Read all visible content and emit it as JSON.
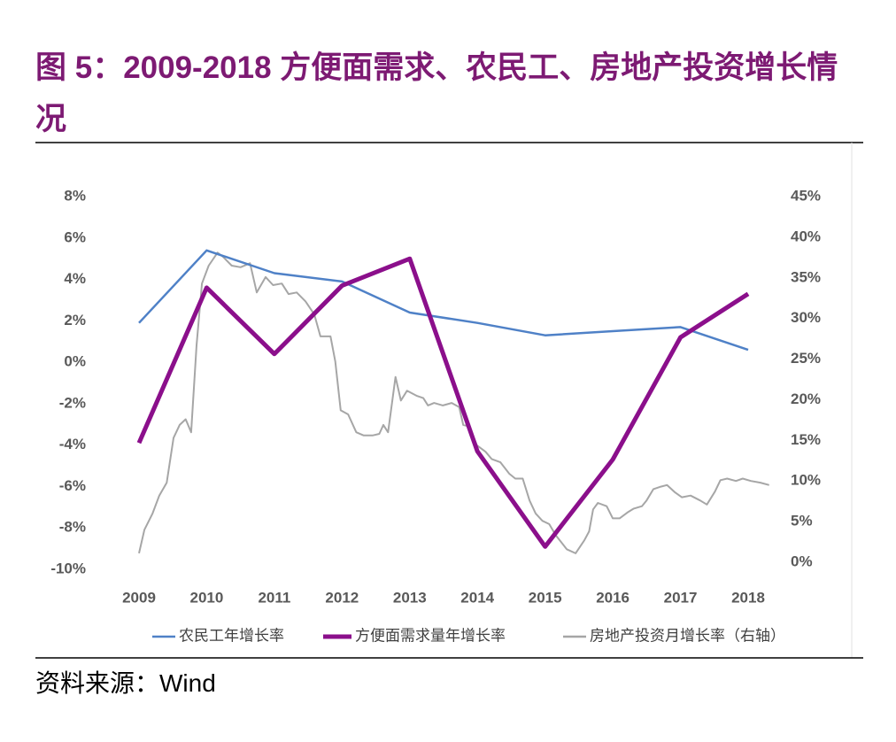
{
  "chart_data": {
    "type": "line",
    "title": "图 5：2009-2018 方便面需求、农民工、房地产投资增长情况",
    "x": [
      2009,
      2010,
      2011,
      2012,
      2013,
      2014,
      2015,
      2016,
      2017,
      2018
    ],
    "xlim": [
      2009,
      2018
    ],
    "xticks": [
      2009,
      2010,
      2011,
      2012,
      2013,
      2014,
      2015,
      2016,
      2017,
      2018
    ],
    "ylim": [
      -10,
      8
    ],
    "yticks": [
      {
        "value": -10,
        "label": "-10%"
      },
      {
        "value": -8,
        "label": "-8%"
      },
      {
        "value": -6,
        "label": "-6%"
      },
      {
        "value": -4,
        "label": "-4%"
      },
      {
        "value": -2,
        "label": "-2%"
      },
      {
        "value": 0,
        "label": "0%"
      },
      {
        "value": 2,
        "label": "2%"
      },
      {
        "value": 4,
        "label": "4%"
      },
      {
        "value": 6,
        "label": "6%"
      },
      {
        "value": 8,
        "label": "8%"
      }
    ],
    "y2lim": [
      0,
      45
    ],
    "y2ticks": [
      {
        "value": 0,
        "label": "0%"
      },
      {
        "value": 5,
        "label": "5%"
      },
      {
        "value": 10,
        "label": "10%"
      },
      {
        "value": 15,
        "label": "15%"
      },
      {
        "value": 20,
        "label": "20%"
      },
      {
        "value": 25,
        "label": "25%"
      },
      {
        "value": 30,
        "label": "30%"
      },
      {
        "value": 35,
        "label": "35%"
      },
      {
        "value": 40,
        "label": "40%"
      },
      {
        "value": 45,
        "label": "45%"
      }
    ],
    "legend": "bottom",
    "series": [
      {
        "name": "农民工年增长率",
        "color": "#4f81c7",
        "values": [
          1.9,
          5.4,
          4.3,
          3.9,
          2.4,
          1.9,
          1.3,
          1.5,
          1.7,
          0.6
        ]
      },
      {
        "name": "方便面需求量年增长率",
        "color": "#8b0f8b",
        "values": [
          -3.9,
          3.6,
          0.4,
          3.7,
          5.0,
          -4.3,
          -8.9,
          -4.7,
          1.2,
          3.3
        ]
      },
      {
        "name": "房地产投资月增长率（右轴）",
        "color": "#a6a6a6",
        "axis": "y2",
        "x": [
          2009.0,
          2009.08,
          2009.2,
          2009.3,
          2009.41,
          2009.51,
          2009.6,
          2009.69,
          2009.77,
          2009.85,
          2009.93,
          2010.03,
          2010.16,
          2010.24,
          2010.37,
          2010.5,
          2010.64,
          2010.74,
          2010.87,
          2010.98,
          2011.11,
          2011.21,
          2011.33,
          2011.46,
          2011.59,
          2011.68,
          2011.83,
          2011.9,
          2011.98,
          2012.09,
          2012.21,
          2012.32,
          2012.45,
          2012.55,
          2012.61,
          2012.68,
          2012.79,
          2012.87,
          2012.96,
          2013.1,
          2013.2,
          2013.27,
          2013.36,
          2013.49,
          2013.62,
          2013.73,
          2013.79,
          2013.88,
          2013.99,
          2014.12,
          2014.21,
          2014.34,
          2014.47,
          2014.56,
          2014.67,
          2014.77,
          2014.86,
          2014.96,
          2015.06,
          2015.16,
          2015.32,
          2015.45,
          2015.58,
          2015.65,
          2015.71,
          2015.78,
          2015.91,
          2016.0,
          2016.1,
          2016.23,
          2016.31,
          2016.43,
          2016.5,
          2016.6,
          2016.71,
          2016.8,
          2016.92,
          2017.02,
          2017.15,
          2017.29,
          2017.39,
          2017.51,
          2017.59,
          2017.69,
          2017.82,
          2017.92,
          2018.04,
          2018.18,
          2018.31
        ],
        "values": [
          1.1,
          4.0,
          6.0,
          8.2,
          9.8,
          15.3,
          16.9,
          17.6,
          16.0,
          26.7,
          34.3,
          36.5,
          38.1,
          37.6,
          36.5,
          36.3,
          36.8,
          33.2,
          35.1,
          34.1,
          34.3,
          33.0,
          33.2,
          32.1,
          30.5,
          27.8,
          27.8,
          24.7,
          18.7,
          18.2,
          16.0,
          15.6,
          15.6,
          15.8,
          16.9,
          16.0,
          22.8,
          19.9,
          21.1,
          20.5,
          20.2,
          19.3,
          19.6,
          19.3,
          19.6,
          19.1,
          16.9,
          16.7,
          14.4,
          13.6,
          12.7,
          12.3,
          10.9,
          10.3,
          10.3,
          7.6,
          6.0,
          5.1,
          4.7,
          3.3,
          1.6,
          1.1,
          2.7,
          3.8,
          6.5,
          7.3,
          6.9,
          5.4,
          5.4,
          6.2,
          6.6,
          6.9,
          7.6,
          9.0,
          9.3,
          9.5,
          8.6,
          8.0,
          8.2,
          7.6,
          7.1,
          8.7,
          10.1,
          10.3,
          10.0,
          10.3,
          10.0,
          9.8,
          9.5
        ]
      }
    ]
  },
  "source": "资料来源：Wind"
}
